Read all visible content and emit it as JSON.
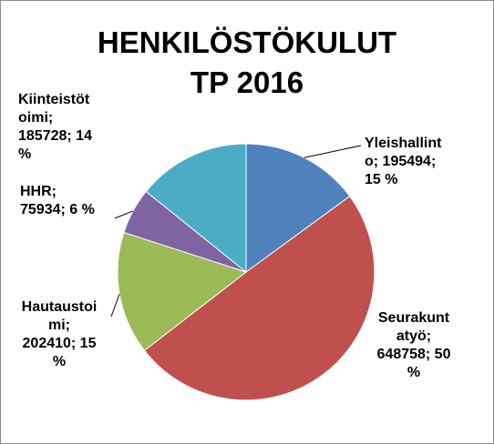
{
  "chart_data": {
    "type": "pie",
    "title": [
      "HENKILÖSTÖKULUT",
      "TP 2016"
    ],
    "colors": {
      "yleishallinto": "#4f81bd",
      "seurakuntatyo": "#c0504d",
      "hautaustoimi": "#9bbb59",
      "hhr": "#8064a2",
      "kiinteistotoimi": "#4bacc6"
    },
    "slices": [
      {
        "key": "yleishallinto",
        "value": 195494,
        "label_lines": [
          "Yleishallint",
          "o; 195494;",
          "15 %"
        ]
      },
      {
        "key": "seurakuntatyo",
        "value": 648758,
        "label_lines": [
          "Seurakunt",
          "atyö;",
          "648758; 50",
          "%"
        ]
      },
      {
        "key": "hautaustoimi",
        "value": 202410,
        "label_lines": [
          "Hautaustoi",
          "mi;",
          "202410; 15",
          "%"
        ]
      },
      {
        "key": "hhr",
        "value": 75934,
        "label_lines": [
          "HHR;",
          "75934; 6 %"
        ]
      },
      {
        "key": "kiinteistotoimi",
        "value": 185728,
        "label_lines": [
          "Kiinteistöt",
          "oimi;",
          "185728; 14",
          "%"
        ]
      }
    ]
  }
}
